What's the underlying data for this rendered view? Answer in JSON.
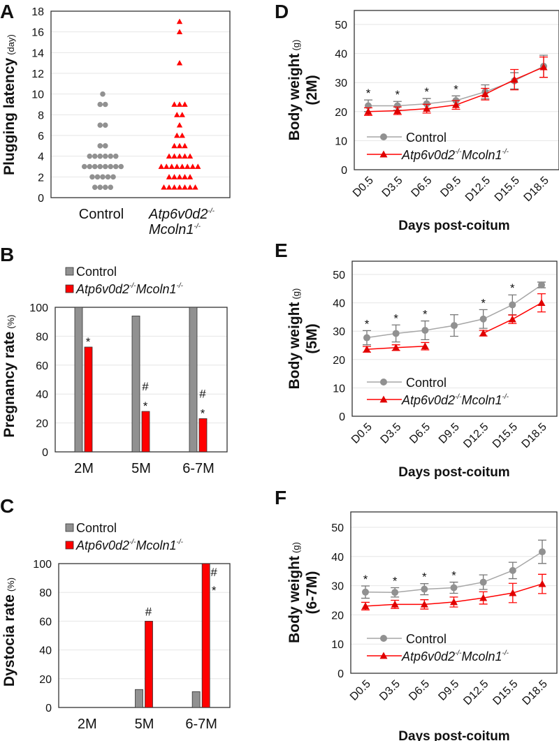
{
  "colors": {
    "control": "#919191",
    "mutant": "#ff0000",
    "control_line": "#a6a6a6",
    "grid": "#e6e6e6",
    "frame": "#333333"
  },
  "genotype": {
    "gene1": "Atp6v0d2",
    "gene2": "Mcoln1",
    "sup": "-/-"
  },
  "chart_data": [
    {
      "panel": "A",
      "type": "scatter",
      "ylabel": "Plugging latency",
      "yunit": "(day)",
      "ylim": [
        0,
        18
      ],
      "yticks": [
        "0",
        "2",
        "4",
        "6",
        "8",
        "10",
        "12",
        "14",
        "16",
        "18"
      ],
      "categories": [
        "Control",
        "Atp6v0d2-/- Mcoln1-/-"
      ],
      "control_label": "Control",
      "series": [
        {
          "name": "Control",
          "marker": "circle",
          "values": [
            10,
            9,
            9,
            7,
            7,
            5,
            5,
            4,
            4,
            4,
            4,
            4,
            4,
            3,
            3,
            3,
            3,
            3,
            3,
            3,
            3,
            2,
            2,
            2,
            2,
            2,
            1,
            1,
            1,
            1
          ]
        },
        {
          "name": "Atp6v0d2-/-Mcoln1-/-",
          "marker": "triangle",
          "values": [
            17,
            16,
            13,
            9,
            9,
            9,
            8,
            8,
            7,
            6,
            6,
            5,
            5,
            5,
            4,
            4,
            4,
            4,
            4,
            3,
            3,
            3,
            3,
            3,
            3,
            3,
            3,
            2,
            2,
            2,
            2,
            2,
            1,
            1,
            1,
            1,
            1,
            1,
            1
          ]
        }
      ]
    },
    {
      "panel": "B",
      "type": "bar",
      "ylabel": "Pregnancy rate",
      "yunit": "(%)",
      "ylim": [
        0,
        100
      ],
      "yticks": [
        "0",
        "20",
        "40",
        "60",
        "80",
        "100"
      ],
      "categories": [
        "2M",
        "5M",
        "6-7M"
      ],
      "legend": {
        "control": "Control",
        "placement": "top-left"
      },
      "series": [
        {
          "name": "Control",
          "values": [
            100,
            94,
            100
          ]
        },
        {
          "name": "Atp6v0d2-/-Mcoln1-/-",
          "values": [
            72.5,
            28,
            23
          ]
        }
      ],
      "annotations": [
        [
          "*"
        ],
        [
          "#",
          "*"
        ],
        [
          "#",
          "*"
        ]
      ]
    },
    {
      "panel": "C",
      "type": "bar",
      "ylabel": "Dystocia rate",
      "yunit": "(%)",
      "ylim": [
        0,
        100
      ],
      "yticks": [
        "0",
        "20",
        "40",
        "60",
        "80",
        "100"
      ],
      "categories": [
        "2M",
        "5M",
        "6-7M"
      ],
      "legend": {
        "control": "Control",
        "placement": "top-left"
      },
      "series": [
        {
          "name": "Control",
          "values": [
            0,
            12.5,
            11
          ]
        },
        {
          "name": "Atp6v0d2-/-Mcoln1-/-",
          "values": [
            0,
            60,
            100
          ]
        }
      ],
      "annotations": [
        [],
        [
          "#"
        ],
        [
          "#",
          "*"
        ]
      ]
    },
    {
      "panel": "D",
      "type": "line",
      "ylabel": "Body weight",
      "yunit": "(g)",
      "group": "(2M)",
      "xlabel": "Days post-coitum",
      "ylim": [
        0,
        50
      ],
      "yticks": [
        "0",
        "10",
        "20",
        "30",
        "40",
        "50"
      ],
      "x": [
        "D0.5",
        "D3.5",
        "D6.5",
        "D9.5",
        "D12.5",
        "D15.5",
        "D18.5"
      ],
      "legend": {
        "control": "Control",
        "placement": "bottom-left"
      },
      "series": [
        {
          "name": "Control",
          "values": [
            22,
            22,
            22.7,
            23.8,
            26.8,
            30.6,
            35.6
          ],
          "error": [
            2,
            1.5,
            1.8,
            1.6,
            2.4,
            2.8,
            3.8
          ]
        },
        {
          "name": "Atp6v0d2-/-Mcoln1-/-",
          "values": [
            20,
            20.3,
            21,
            22.3,
            26,
            31,
            35.3
          ],
          "error": [
            1.3,
            1.3,
            1.5,
            1.5,
            2,
            3.5,
            3.5
          ]
        }
      ],
      "significance": [
        "*",
        "*",
        "*",
        "*",
        "",
        "",
        ""
      ]
    },
    {
      "panel": "E",
      "type": "line",
      "ylabel": "Body weight",
      "yunit": "(g)",
      "group": "(5M)",
      "xlabel": "Days post-coitum",
      "ylim": [
        0,
        50
      ],
      "yticks": [
        "0",
        "10",
        "20",
        "30",
        "40",
        "50"
      ],
      "x": [
        "D0.5",
        "D3.5",
        "D6.5",
        "D9.5",
        "D12.5",
        "D15.5",
        "D18.5"
      ],
      "legend": {
        "control": "Control",
        "placement": "bottom-left"
      },
      "series": [
        {
          "name": "Control",
          "values": [
            27.7,
            29.2,
            30.3,
            32,
            34.3,
            39.3,
            46.3
          ],
          "error": [
            2.5,
            3,
            3.3,
            3.8,
            3.3,
            3.5,
            1
          ]
        },
        {
          "name": "Atp6v0d2-/-Mcoln1-/-",
          "values": [
            23.6,
            24.2,
            24.7,
            null,
            29.3,
            34.2,
            40
          ],
          "error": [
            1,
            1,
            1.3,
            null,
            1,
            1.5,
            3.2
          ]
        }
      ],
      "significance": [
        "*",
        "*",
        "*",
        "",
        "*",
        "*",
        ""
      ]
    },
    {
      "panel": "F",
      "type": "line",
      "ylabel": "Body weight",
      "yunit": "(g)",
      "group": "(6-7M)",
      "xlabel": "Days post-coitum",
      "ylim": [
        0,
        50
      ],
      "yticks": [
        "0",
        "10",
        "20",
        "30",
        "40",
        "50"
      ],
      "x": [
        "D0.5",
        "D3.5",
        "D6.5",
        "D9.5",
        "D12.5",
        "D15.5",
        "D18.5"
      ],
      "legend": {
        "control": "Control",
        "placement": "bottom-left"
      },
      "series": [
        {
          "name": "Control",
          "values": [
            27.8,
            27.7,
            28.8,
            29.3,
            31.2,
            35.2,
            41.6
          ],
          "error": [
            2.1,
            1.6,
            1.9,
            1.9,
            2.5,
            2.8,
            4
          ]
        },
        {
          "name": "Atp6v0d2-/-Mcoln1-/-",
          "values": [
            23,
            23.6,
            23.6,
            24.4,
            25.8,
            27.5,
            30.6
          ],
          "error": [
            1.3,
            1.4,
            1.6,
            1.7,
            2.1,
            3.3,
            3.3
          ]
        }
      ],
      "significance": [
        "*",
        "*",
        "*",
        "*",
        "",
        "",
        ""
      ]
    }
  ]
}
